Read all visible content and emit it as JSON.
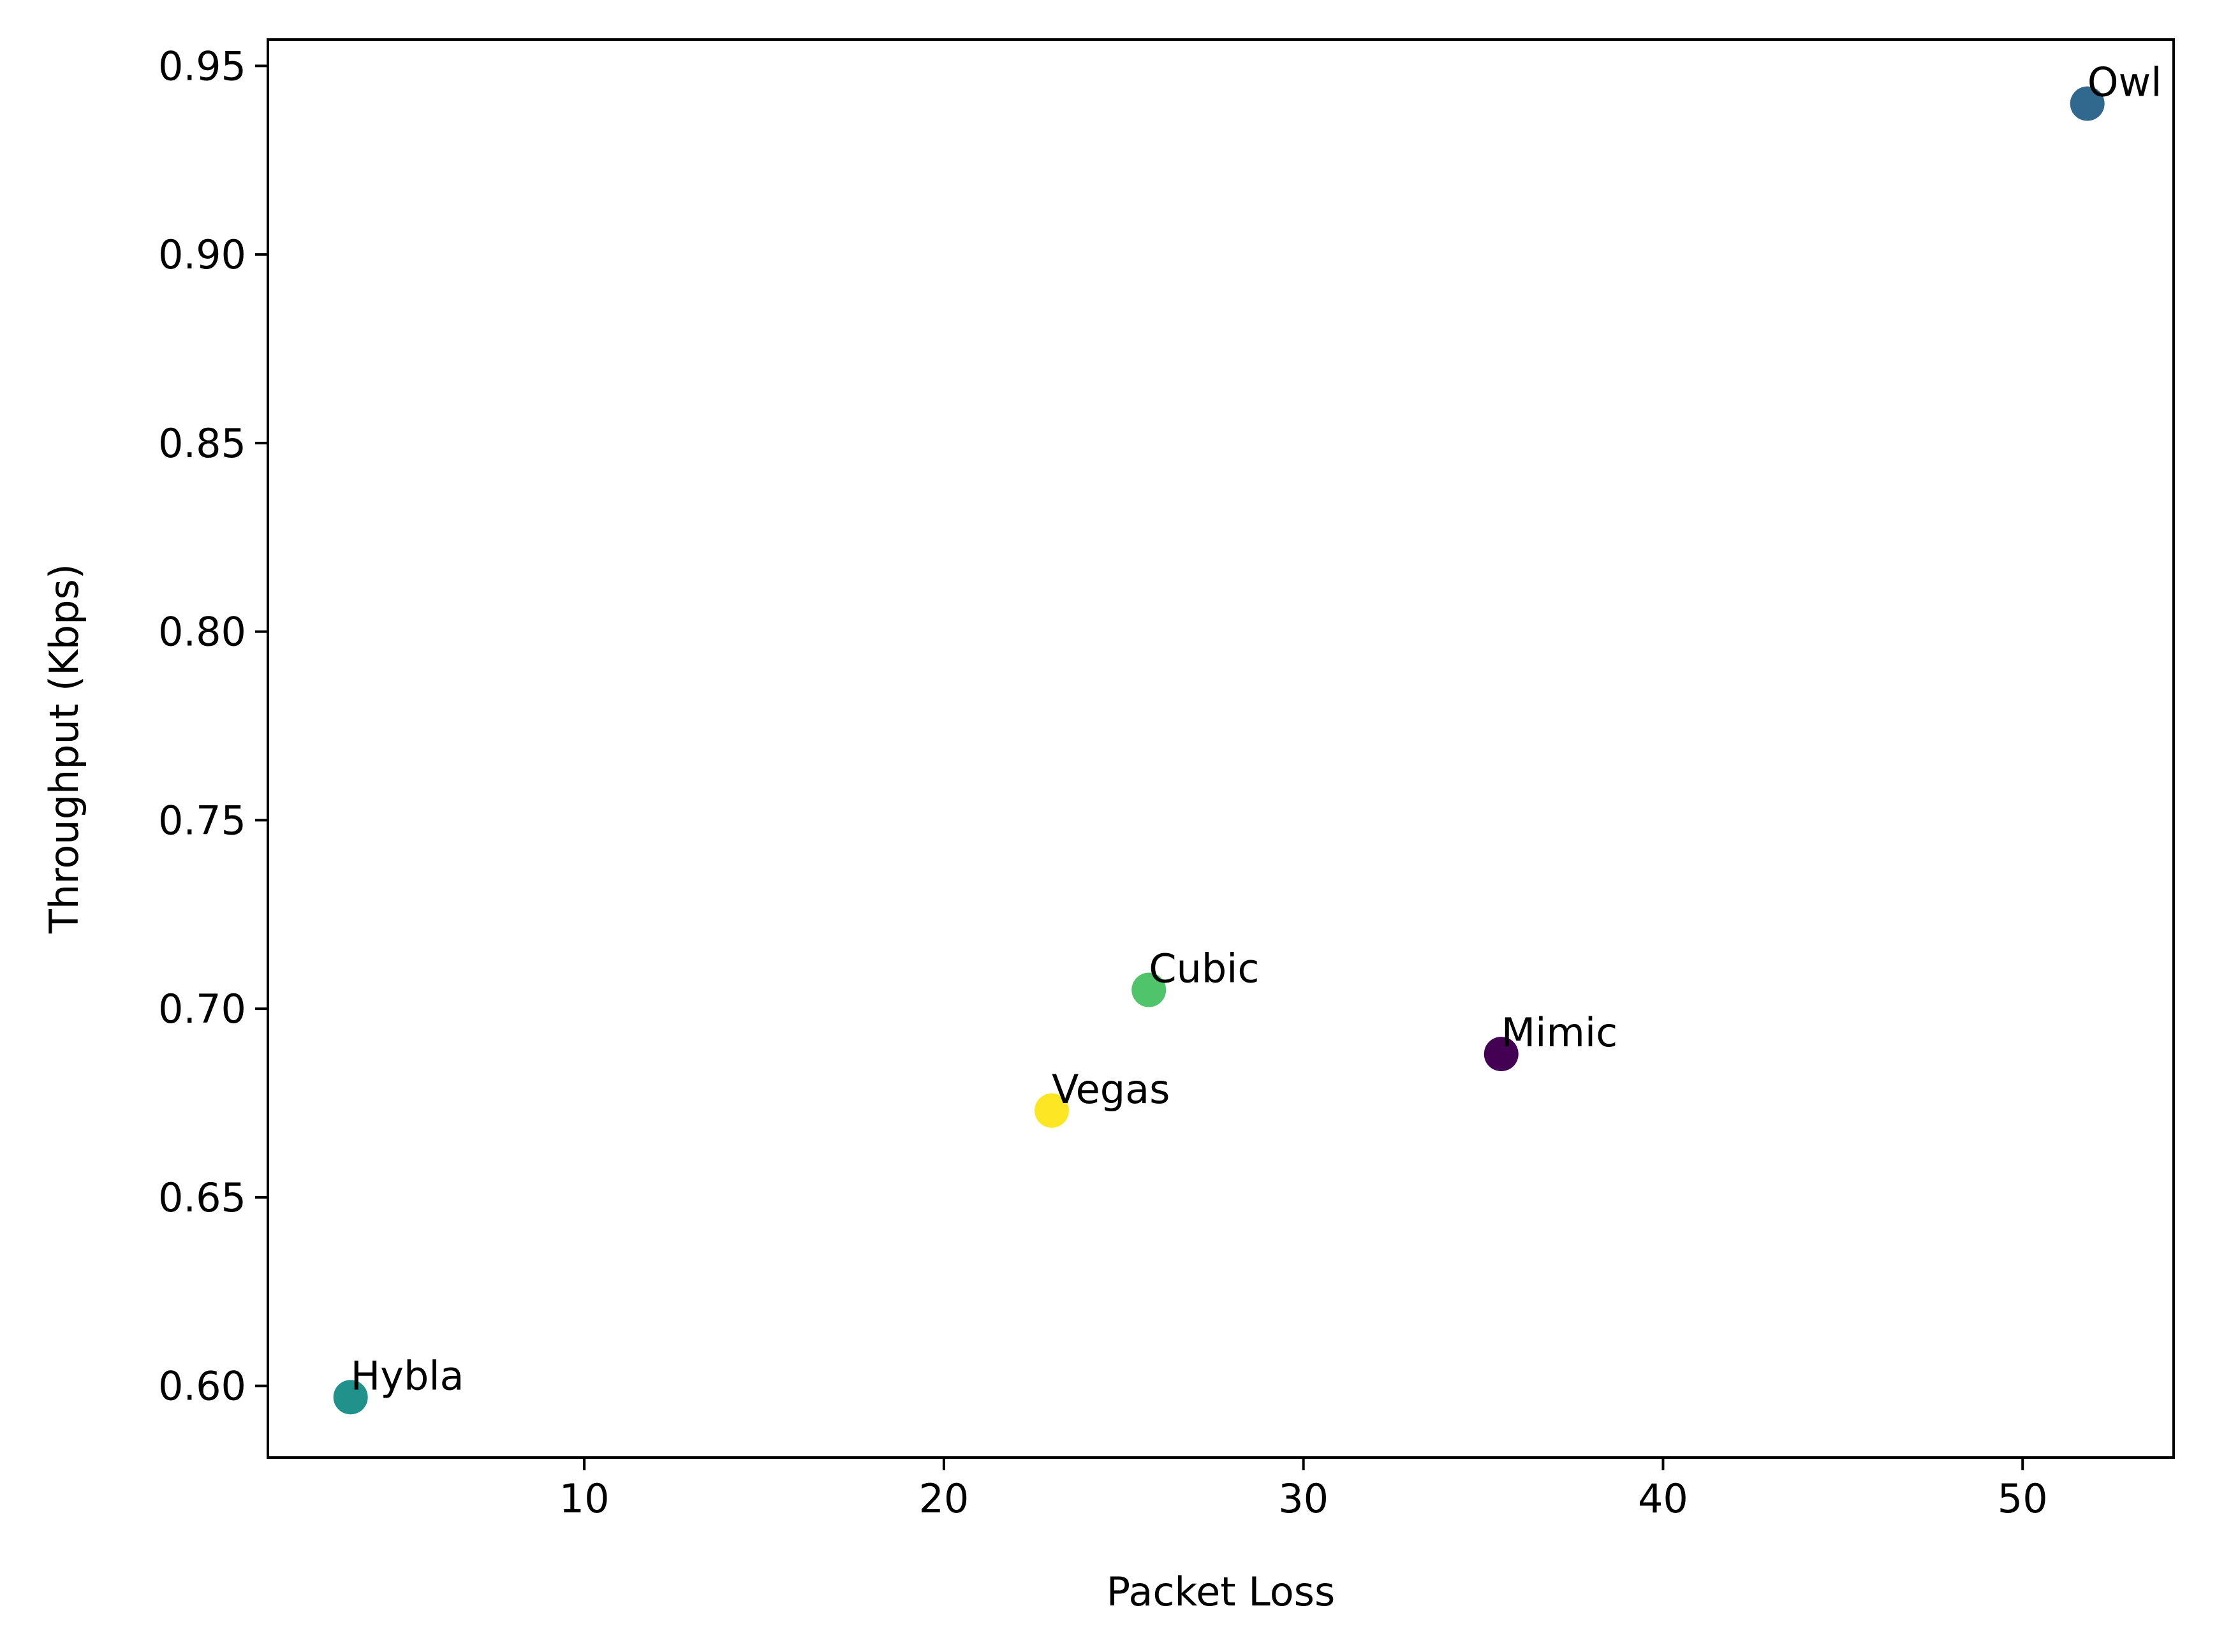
{
  "chart_data": {
    "type": "scatter",
    "title": "",
    "xlabel": "Packet Loss",
    "ylabel": "Throughput (Kbps)",
    "xlim": [
      1.2,
      54.2
    ],
    "ylim": [
      0.581,
      0.957
    ],
    "x_ticks": [
      10,
      20,
      30,
      40,
      50
    ],
    "y_ticks": [
      0.6,
      0.65,
      0.7,
      0.75,
      0.8,
      0.85,
      0.9,
      0.95
    ],
    "grid": false,
    "legend": "none",
    "points": [
      {
        "label": "Owl",
        "x": 51.8,
        "y": 0.94,
        "color": "#31688e"
      },
      {
        "label": "Cubic",
        "x": 25.7,
        "y": 0.705,
        "color": "#50c46a"
      },
      {
        "label": "Mimic",
        "x": 35.5,
        "y": 0.688,
        "color": "#440154"
      },
      {
        "label": "Vegas",
        "x": 23.0,
        "y": 0.673,
        "color": "#fde725"
      },
      {
        "label": "Hybla",
        "x": 3.5,
        "y": 0.597,
        "color": "#21918c"
      }
    ]
  }
}
